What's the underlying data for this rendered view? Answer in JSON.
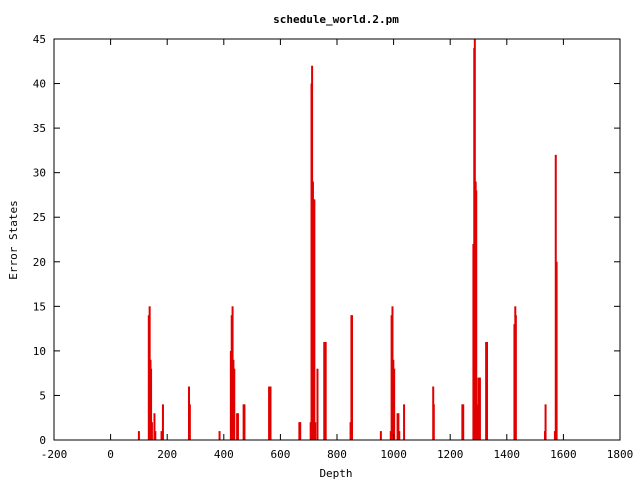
{
  "chart_data": {
    "type": "bar",
    "title": "schedule_world.2.pm",
    "xlabel": "Depth",
    "ylabel": "Error States",
    "xlim": [
      -200,
      1800
    ],
    "ylim": [
      0,
      45
    ],
    "xticks": [
      -200,
      0,
      200,
      400,
      600,
      800,
      1000,
      1200,
      1400,
      1600,
      1800
    ],
    "yticks": [
      0,
      5,
      10,
      15,
      20,
      25,
      30,
      35,
      40,
      45
    ],
    "grid": false,
    "legend": "none",
    "bar_color": "#e00000",
    "x": [
      100,
      135,
      138,
      141,
      143,
      146,
      155,
      158,
      180,
      185,
      277,
      280,
      385,
      425,
      428,
      431,
      434,
      437,
      447,
      450,
      470,
      473,
      560,
      563,
      565,
      667,
      670,
      707,
      710,
      712,
      715,
      718,
      720,
      723,
      731,
      755,
      758,
      760,
      848,
      851,
      853,
      955,
      990,
      993,
      996,
      999,
      1002,
      1014,
      1017,
      1020,
      1037,
      1140,
      1142,
      1243,
      1246,
      1282,
      1285,
      1287,
      1290,
      1292,
      1297,
      1300,
      1302,
      1305,
      1327,
      1330,
      1427,
      1430,
      1432,
      1535,
      1537,
      1570,
      1573,
      1576
    ],
    "values": [
      1,
      14,
      15,
      9,
      8,
      2,
      3,
      1,
      1,
      4,
      6,
      4,
      1,
      10,
      14,
      15,
      9,
      8,
      3,
      3,
      4,
      4,
      6,
      6,
      6,
      2,
      2,
      2,
      40,
      42,
      29,
      27,
      27,
      2,
      8,
      11,
      11,
      11,
      2,
      14,
      14,
      1,
      1,
      14,
      15,
      9,
      8,
      3,
      3,
      1,
      4,
      6,
      4,
      4,
      4,
      22,
      44,
      45,
      29,
      28,
      4,
      7,
      7,
      7,
      11,
      11,
      13,
      15,
      14,
      1,
      4,
      1,
      32,
      20
    ]
  }
}
